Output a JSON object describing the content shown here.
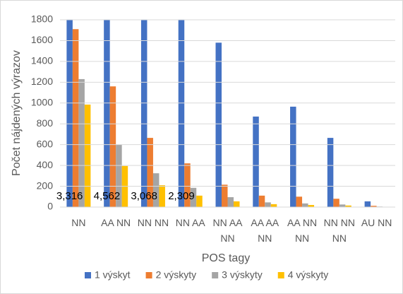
{
  "chart_data": {
    "type": "bar",
    "x_label": "POS tagy",
    "y_label": "Počet nájdených výrazov",
    "categories": [
      "NN",
      "AA NN",
      "NN NN",
      "NN AA",
      "NN AA NN",
      "AA AA NN",
      "AA NN NN",
      "NN NN NN",
      "AU NN"
    ],
    "series": [
      {
        "name": "1 výskyt",
        "color": "#4472c4",
        "values": [
          3316,
          4562,
          3068,
          2309,
          1580,
          870,
          965,
          665,
          55
        ],
        "value_labels": [
          "3,316",
          "4,562",
          "3,068",
          "2,309",
          null,
          null,
          null,
          null,
          null
        ]
      },
      {
        "name": "2 výskyty",
        "color": "#ed7d31",
        "values": [
          1710,
          1160,
          665,
          420,
          215,
          110,
          100,
          80,
          12
        ]
      },
      {
        "name": "3 výskyty",
        "color": "#a5a5a5",
        "values": [
          1230,
          600,
          325,
          185,
          95,
          45,
          35,
          25,
          5
        ]
      },
      {
        "name": "4 výskyty",
        "color": "#ffc000",
        "values": [
          985,
          395,
          210,
          110,
          55,
          28,
          20,
          15,
          3
        ]
      }
    ],
    "ylim": [
      0,
      1800
    ],
    "yticks": [
      0,
      200,
      400,
      600,
      800,
      1000,
      1200,
      1400,
      1600,
      1800
    ],
    "grid": true,
    "legend": "bottom"
  }
}
